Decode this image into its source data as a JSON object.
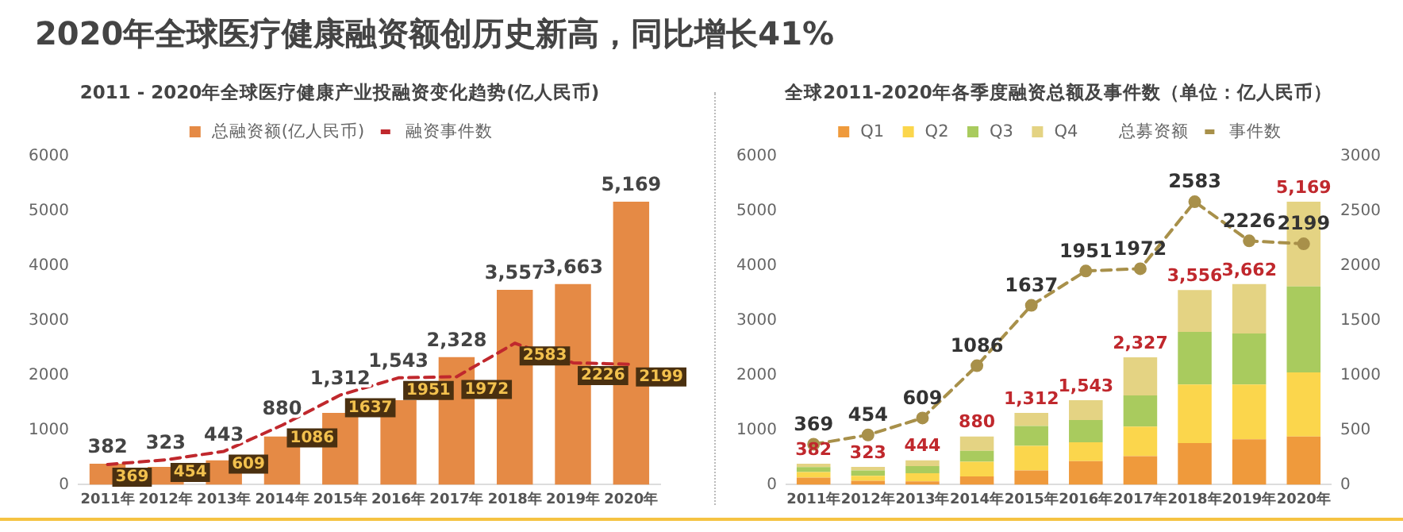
{
  "chart_data": [
    {
      "type": "bar",
      "title": "2020年全球医疗健康融资额创历史新高，同比增长41%",
      "subtitle": "2011 - 2020年全球医疗健康产业投融资变化趋势(亿人民币)",
      "categories": [
        "2011年",
        "2012年",
        "2013年",
        "2014年",
        "2015年",
        "2016年",
        "2017年",
        "2018年",
        "2019年",
        "2020年"
      ],
      "series": [
        {
          "name": "总融资额(亿人民币)",
          "type": "bar",
          "color": "#e58a45",
          "values": [
            382,
            323,
            443,
            880,
            1312,
            1543,
            2328,
            3557,
            3663,
            5169
          ],
          "value_labels": [
            "382",
            "323",
            "443",
            "880",
            "1,312",
            "1,543",
            "2,328",
            "3,557",
            "3,663",
            "5,169"
          ]
        },
        {
          "name": "融资事件数",
          "type": "line",
          "color": "#c0282d",
          "values": [
            369,
            454,
            609,
            1086,
            1637,
            1951,
            1972,
            2583,
            2226,
            2199
          ],
          "value_labels": [
            "369",
            "454",
            "609",
            "1086",
            "1637",
            "1951",
            "1972",
            "2583",
            "2226",
            "2199"
          ]
        }
      ],
      "ylim": [
        0,
        6000
      ],
      "yticks": [
        0,
        1000,
        2000,
        3000,
        4000,
        5000,
        6000
      ],
      "legend": "top",
      "line_style": "dashed",
      "marker": "none",
      "grid": false
    },
    {
      "type": "bar",
      "stacked": true,
      "title": "全球2011-2020年各季度融资总额及事件数（单位：亿人民币）",
      "categories": [
        "2011年",
        "2012年",
        "2013年",
        "2014年",
        "2015年",
        "2016年",
        "2017年",
        "2018年",
        "2019年",
        "2020年"
      ],
      "series": [
        {
          "name": "Q1",
          "color": "#ef9a3c",
          "values": [
            130,
            70,
            60,
            150,
            260,
            430,
            520,
            760,
            830,
            880
          ]
        },
        {
          "name": "Q2",
          "color": "#fbd64c",
          "values": [
            100,
            90,
            150,
            270,
            450,
            345,
            540,
            1070,
            1000,
            1170
          ]
        },
        {
          "name": "Q3",
          "color": "#a9cb5e",
          "values": [
            90,
            100,
            130,
            200,
            360,
            405,
            570,
            960,
            930,
            1570
          ]
        },
        {
          "name": "Q4",
          "color": "#e4d383",
          "values": [
            62,
            63,
            104,
            260,
            242,
            363,
            697,
            766,
            902,
            1549
          ]
        },
        {
          "name": "事件数",
          "type": "line",
          "axis": "y2",
          "color": "#a8904a",
          "values": [
            369,
            454,
            609,
            1086,
            1637,
            1951,
            1972,
            2583,
            2226,
            2199
          ],
          "value_labels": [
            "369",
            "454",
            "609",
            "1086",
            "1637",
            "1951",
            "1972",
            "2583",
            "2226",
            "2199"
          ]
        }
      ],
      "totals": [
        "382",
        "323",
        "444",
        "880",
        "1,312",
        "1,543",
        "2,327",
        "3,556",
        "3,662",
        "5,169"
      ],
      "annotations": [
        "总募资额"
      ],
      "ylim": [
        0,
        6000
      ],
      "yticks": [
        0,
        1000,
        2000,
        3000,
        4000,
        5000,
        6000
      ],
      "y2lim": [
        0,
        3000
      ],
      "y2ticks": [
        0,
        500,
        1000,
        1500,
        2000,
        2500,
        3000
      ],
      "legend": "top",
      "line_style": "dashed",
      "marker": "circle",
      "grid": false
    }
  ]
}
